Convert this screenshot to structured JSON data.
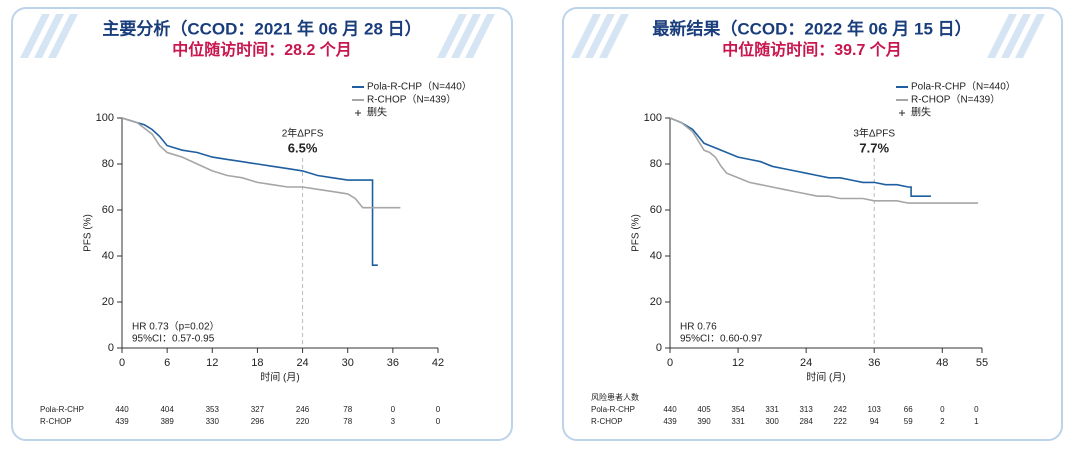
{
  "chart_data": [
    {
      "type": "line",
      "title": "主要分析（CCOD：2021 年 06 月 28 日）",
      "subtitle": "中位随访时间：28.2 个月",
      "xlabel": "时间 (月)",
      "ylabel": "PFS (%)",
      "xlim": [
        0,
        42
      ],
      "xticks": [
        0,
        6,
        12,
        18,
        24,
        30,
        36,
        42
      ],
      "ylim": [
        0,
        100
      ],
      "yticks": [
        0,
        20,
        40,
        60,
        80,
        100
      ],
      "series": [
        {
          "name": "Pola-R-CHP（N=440）",
          "color": "#1f5fa0",
          "x": [
            0,
            1,
            2,
            3,
            4,
            5,
            6,
            7,
            8,
            10,
            12,
            14,
            16,
            18,
            20,
            22,
            24,
            26,
            28,
            30,
            32,
            33.3,
            33.3,
            34
          ],
          "values": [
            100,
            99,
            98,
            97,
            95,
            92,
            88,
            87,
            86,
            85,
            83,
            82,
            81,
            80,
            79,
            78,
            77,
            75,
            74,
            73,
            73,
            73,
            36,
            36
          ]
        },
        {
          "name": "R-CHOP（N=439）",
          "color": "#a6a6a6",
          "x": [
            0,
            2,
            4,
            5,
            6,
            7,
            8,
            10,
            12,
            14,
            16,
            18,
            20,
            22,
            24,
            26,
            28,
            30,
            31,
            32,
            34,
            37
          ],
          "values": [
            100,
            98,
            93,
            88,
            85,
            84,
            83,
            80,
            77,
            75,
            74,
            72,
            71,
            70,
            70,
            69,
            68,
            67,
            65,
            61,
            61,
            61
          ]
        }
      ],
      "censor_label": "删失",
      "annotation": {
        "x": 24,
        "label": "2年ΔPFS",
        "value_label": "6.5%"
      },
      "stats": [
        "HR 0.73（p=0.02）",
        "95%CI：0.57-0.95"
      ],
      "risk_table": {
        "rows": [
          {
            "name": "Pola-R-CHP",
            "values": [
              440,
              404,
              353,
              327,
              246,
              78,
              0,
              0
            ]
          },
          {
            "name": "R-CHOP",
            "values": [
              439,
              389,
              330,
              296,
              220,
              78,
              3,
              0
            ]
          }
        ]
      }
    },
    {
      "type": "line",
      "title": "最新结果（CCOD：2022 年 06 月 15 日）",
      "subtitle": "中位随访时间：39.7 个月",
      "xlabel": "时间 (月)",
      "ylabel": "PFS (%)",
      "xlim": [
        0,
        55
      ],
      "xticks": [
        0,
        12,
        24,
        36,
        48,
        55
      ],
      "ylim": [
        0,
        100
      ],
      "yticks": [
        0,
        20,
        40,
        60,
        80,
        100
      ],
      "series": [
        {
          "name": "Pola-R-CHP（N=440）",
          "color": "#1f5fa0",
          "x": [
            0,
            2,
            4,
            5,
            6,
            7,
            8,
            10,
            12,
            14,
            16,
            18,
            20,
            22,
            24,
            26,
            28,
            30,
            32,
            34,
            36,
            38,
            40,
            42,
            42.5,
            42.5,
            44,
            46
          ],
          "values": [
            100,
            98,
            95,
            92,
            89,
            88,
            87,
            85,
            83,
            82,
            81,
            79,
            78,
            77,
            76,
            75,
            74,
            74,
            73,
            72,
            72,
            71,
            71,
            70,
            70,
            66,
            66,
            66
          ]
        },
        {
          "name": "R-CHOP（N=439）",
          "color": "#a6a6a6",
          "x": [
            0,
            2,
            4,
            5,
            6,
            7,
            8,
            9,
            10,
            12,
            14,
            16,
            18,
            20,
            22,
            24,
            26,
            28,
            30,
            32,
            34,
            36,
            38,
            40,
            42,
            44,
            50,
            54.3
          ],
          "values": [
            100,
            98,
            94,
            90,
            86,
            85,
            83,
            79,
            76,
            74,
            72,
            71,
            70,
            69,
            68,
            67,
            66,
            66,
            65,
            65,
            65,
            64,
            64,
            64,
            63,
            63,
            63,
            63
          ]
        }
      ],
      "censor_label": "删失",
      "annotation": {
        "x": 36,
        "label": "3年ΔPFS",
        "value_label": "7.7%"
      },
      "stats": [
        "HR 0.76",
        "95%CI：0.60-0.97"
      ],
      "risk_table": {
        "title": "风险患者人数",
        "rows": [
          {
            "name": "Pola-R-CHP",
            "values": [
              440,
              405,
              354,
              331,
              313,
              242,
              103,
              66,
              0,
              0
            ]
          },
          {
            "name": "R-CHOP",
            "values": [
              439,
              390,
              331,
              300,
              284,
              222,
              94,
              59,
              2,
              1
            ]
          }
        ]
      }
    }
  ]
}
